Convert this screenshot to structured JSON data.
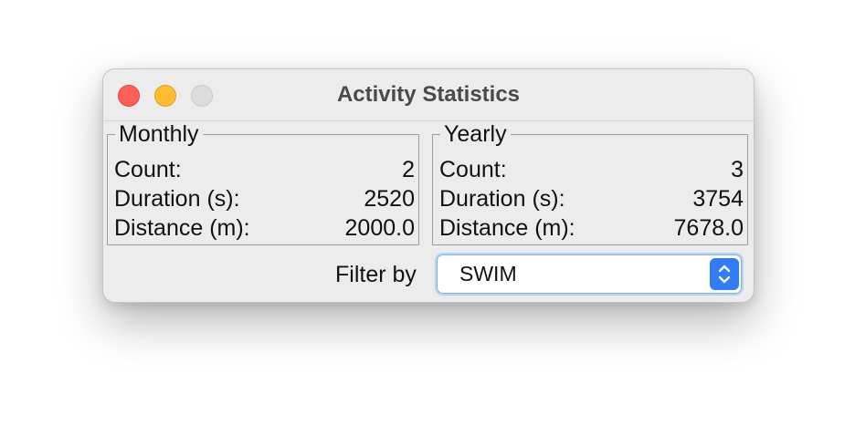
{
  "window": {
    "title": "Activity Statistics"
  },
  "monthly": {
    "legend": "Monthly",
    "rows": [
      {
        "label": "Count:",
        "value": "2"
      },
      {
        "label": "Duration (s):",
        "value": "2520"
      },
      {
        "label": "Distance (m):",
        "value": "2000.0"
      }
    ]
  },
  "yearly": {
    "legend": "Yearly",
    "rows": [
      {
        "label": "Count:",
        "value": "3"
      },
      {
        "label": "Duration (s):",
        "value": "3754"
      },
      {
        "label": "Distance (m):",
        "value": "7678.0"
      }
    ]
  },
  "filter": {
    "label": "Filter by",
    "selected": "SWIM",
    "icon": "chevron-up-down-icon"
  },
  "colors": {
    "close": "#fe5f57",
    "minimize": "#febc2e",
    "zoom": "#dcdcdc",
    "accent": "#2f7cf6"
  }
}
